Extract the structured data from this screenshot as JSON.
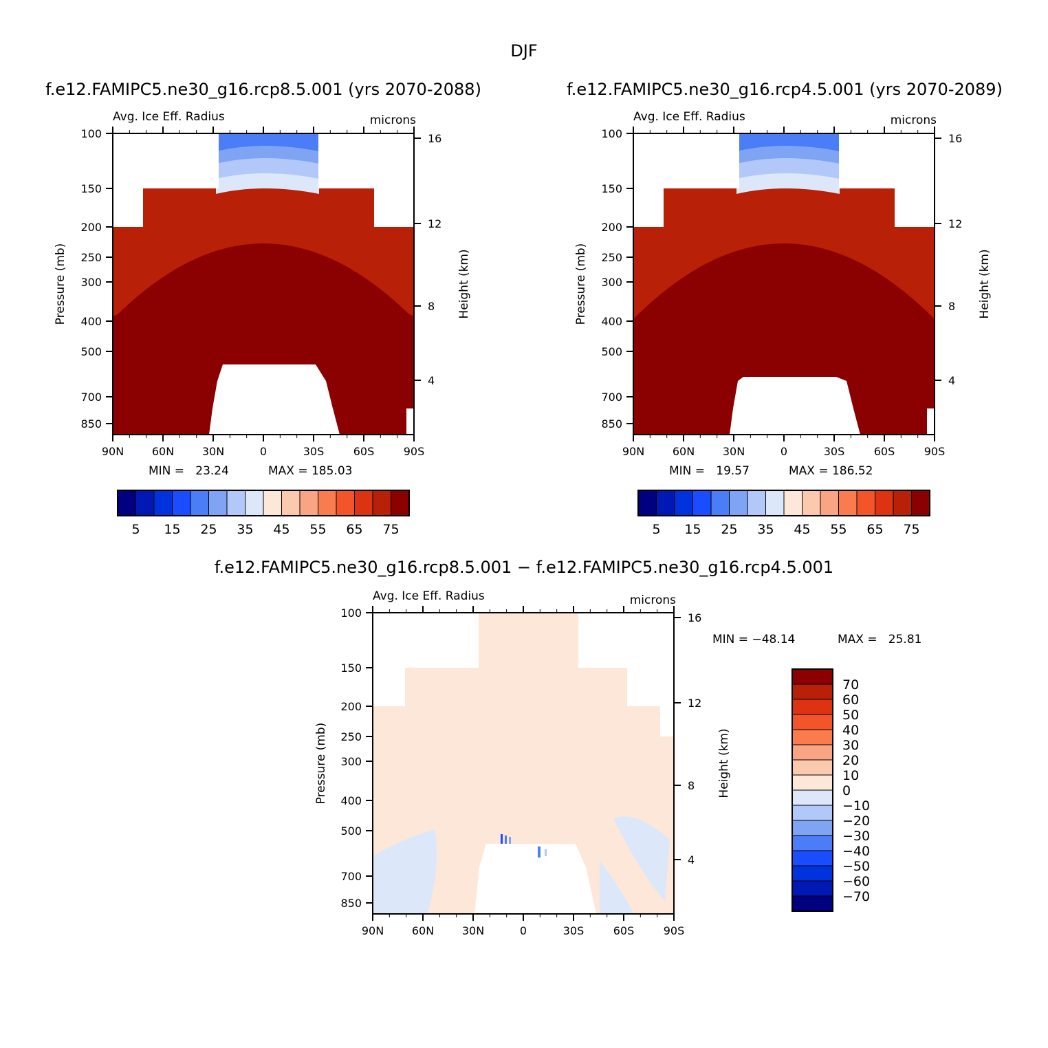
{
  "page_title": "DJF",
  "common": {
    "field_label": "Avg. Ice Eff. Radius",
    "units": "microns",
    "left_axis_label": "Pressure (mb)",
    "right_axis_label": "Height (km)",
    "pressure_ticks": [
      "100",
      "150",
      "200",
      "250",
      "300",
      "400",
      "500",
      "700",
      "850"
    ],
    "height_ticks": [
      "16",
      "12",
      "8",
      "4"
    ],
    "lat_ticks": [
      "90N",
      "60N",
      "30N",
      "0",
      "30S",
      "60S",
      "90S"
    ]
  },
  "colors": {
    "abs_levels": [
      "#000080",
      "#0019b5",
      "#0033dd",
      "#1a4dff",
      "#4a7df6",
      "#7ea4f3",
      "#b2c8f8",
      "#dce8fa",
      "#fde7d9",
      "#fbc9ad",
      "#f9a583",
      "#f97b4e",
      "#f4542a",
      "#de3310",
      "#b82008",
      "#8b0000"
    ],
    "diff_levels": [
      "#000080",
      "#0019b5",
      "#0033dd",
      "#1a4dff",
      "#4a7df6",
      "#7ea4f3",
      "#b2c8f8",
      "#dce8fa",
      "#fde7d9",
      "#fbc9ad",
      "#f9a583",
      "#f97b4e",
      "#f4542a",
      "#de3310",
      "#b82008",
      "#8b0000"
    ]
  },
  "chart_data": [
    {
      "type": "heatmap",
      "id": "panel1",
      "title": "f.e12.FAMIPC5.ne30_g16.rcp8.5.001 (yrs 2070-2088)",
      "xlabel": "",
      "ylabel": "Pressure (mb)",
      "y2label": "Height (km)",
      "min_text": "MIN =   23.24",
      "max_text": "MAX = 185.03",
      "min": 23.24,
      "max": 185.03,
      "xlim": [
        "90N",
        "90S"
      ],
      "ylim_mb": [
        100,
        1000
      ],
      "colorbar_labels": [
        "5",
        "15",
        "25",
        "35",
        "45",
        "55",
        "65",
        "75"
      ],
      "colorbar_levels": [
        0,
        5,
        10,
        15,
        20,
        25,
        30,
        35,
        40,
        45,
        50,
        55,
        60,
        65,
        70,
        75
      ]
    },
    {
      "type": "heatmap",
      "id": "panel2",
      "title": "f.e12.FAMIPC5.ne30_g16.rcp4.5.001 (yrs 2070-2089)",
      "xlabel": "",
      "ylabel": "Pressure (mb)",
      "y2label": "Height (km)",
      "min_text": "MIN =   19.57",
      "max_text": "MAX = 186.52",
      "min": 19.57,
      "max": 186.52,
      "xlim": [
        "90N",
        "90S"
      ],
      "ylim_mb": [
        100,
        1000
      ],
      "colorbar_labels": [
        "5",
        "15",
        "25",
        "35",
        "45",
        "55",
        "65",
        "75"
      ],
      "colorbar_levels": [
        0,
        5,
        10,
        15,
        20,
        25,
        30,
        35,
        40,
        45,
        50,
        55,
        60,
        65,
        70,
        75
      ]
    },
    {
      "type": "heatmap",
      "id": "panel3",
      "title": "f.e12.FAMIPC5.ne30_g16.rcp8.5.001 − f.e12.FAMIPC5.ne30_g16.rcp4.5.001",
      "xlabel": "",
      "ylabel": "Pressure (mb)",
      "y2label": "Height (km)",
      "min_text": "MIN = −48.14",
      "max_text": "MAX =   25.81",
      "min": -48.14,
      "max": 25.81,
      "xlim": [
        "90N",
        "90S"
      ],
      "ylim_mb": [
        100,
        1000
      ],
      "colorbar_labels": [
        "70",
        "60",
        "50",
        "40",
        "30",
        "20",
        "10",
        "0",
        "−10",
        "−20",
        "−30",
        "−40",
        "−50",
        "−60",
        "−70"
      ],
      "colorbar_levels": [
        70,
        60,
        50,
        40,
        30,
        20,
        10,
        0,
        -10,
        -20,
        -30,
        -40,
        -50,
        -60,
        -70
      ]
    }
  ]
}
